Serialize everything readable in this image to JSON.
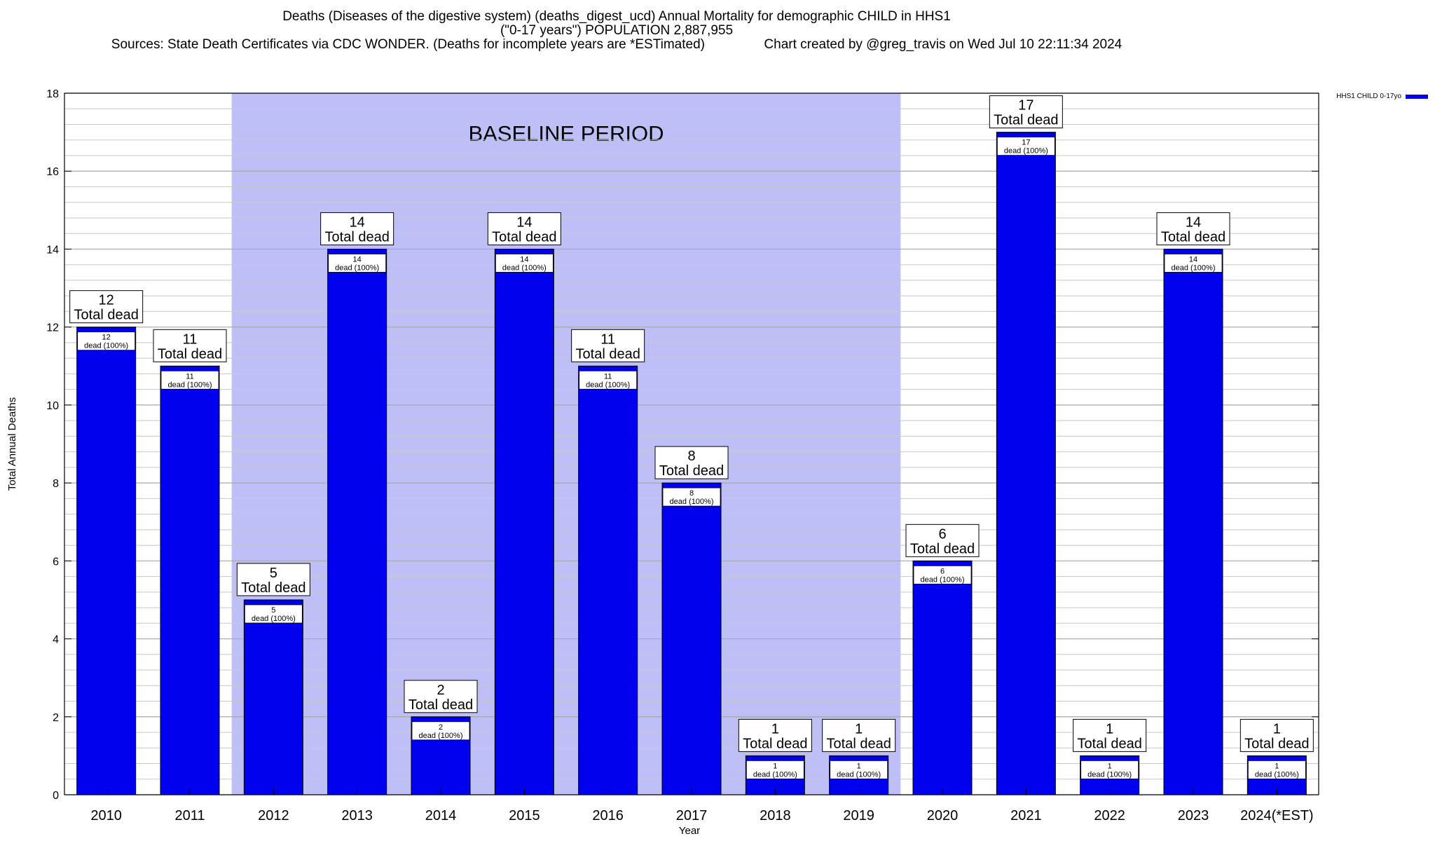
{
  "title": {
    "line1": "Deaths (Diseases of the digestive system) (deaths_digest_ucd) Annual Mortality for demographic CHILD in HHS1",
    "line2": "(\"0-17 years\") POPULATION 2,887,955",
    "line3": "Sources: State Death Certificates via CDC WONDER. (Deaths for incomplete years are *ESTimated)                Chart created by @greg_travis on Wed Jul 10 22:11:34 2024"
  },
  "chart_data": {
    "type": "bar",
    "title": "Deaths (Diseases of the digestive system) (deaths_digest_ucd) Annual Mortality for demographic CHILD in HHS1",
    "xlabel": "Year",
    "ylabel": "Total Annual Deaths",
    "ylim": [
      0,
      18
    ],
    "yticks": [
      0,
      2,
      4,
      6,
      8,
      10,
      12,
      14,
      16,
      18
    ],
    "grid": true,
    "legend_position": "top-right",
    "categories": [
      "2010",
      "2011",
      "2012",
      "2013",
      "2014",
      "2015",
      "2016",
      "2017",
      "2018",
      "2019",
      "2020",
      "2021",
      "2022",
      "2023",
      "2024(*EST)"
    ],
    "series": [
      {
        "name": "HHS1 CHILD 0-17yo",
        "color": "#0000ee",
        "values": [
          12,
          11,
          5,
          14,
          2,
          14,
          11,
          8,
          1,
          1,
          6,
          17,
          1,
          14,
          1
        ]
      }
    ],
    "annotation_total_label": "Total dead",
    "annotation_inner_label": "dead (100%)",
    "baseline": {
      "label": "BASELINE PERIOD",
      "from": "2012",
      "to": "2019",
      "color": "#bfbff7"
    }
  }
}
